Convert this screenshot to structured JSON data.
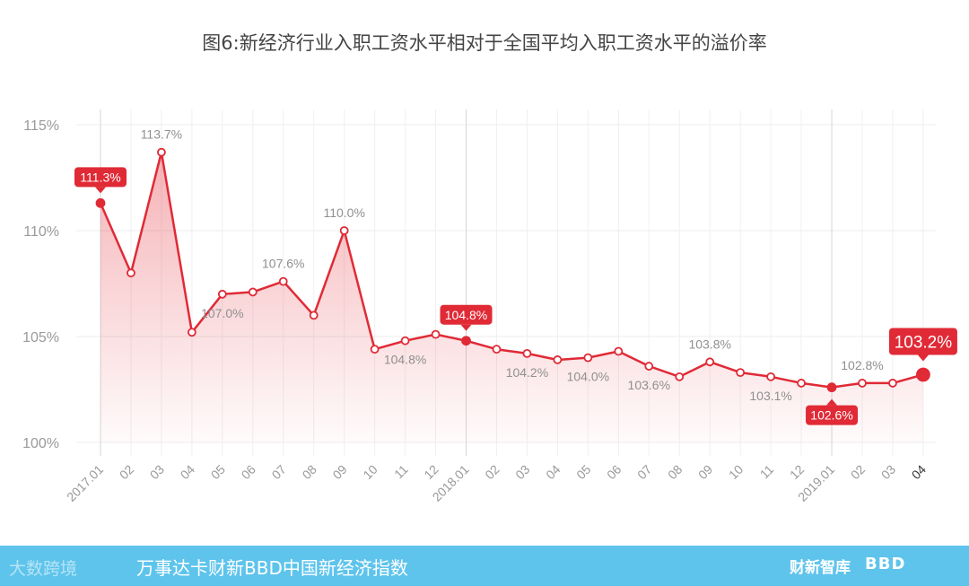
{
  "title": "图6:新经济行业入职工资水平相对于全国平均入职工资水平的溢价率",
  "chart_data": {
    "type": "area",
    "x": [
      "2017.01",
      "02",
      "03",
      "04",
      "05",
      "06",
      "07",
      "08",
      "09",
      "10",
      "11",
      "12",
      "2018.01",
      "02",
      "03",
      "04",
      "05",
      "06",
      "07",
      "08",
      "09",
      "10",
      "11",
      "12",
      "2019.01",
      "02",
      "03",
      "04"
    ],
    "values": [
      111.3,
      108.0,
      113.7,
      105.2,
      107.0,
      107.1,
      107.6,
      106.0,
      110.0,
      104.4,
      104.8,
      105.1,
      104.8,
      104.4,
      104.2,
      103.9,
      104.0,
      104.3,
      103.6,
      103.1,
      103.8,
      103.3,
      103.1,
      102.8,
      102.6,
      102.8,
      102.8,
      103.2
    ],
    "ylim": [
      100,
      115
    ],
    "yticks": [
      100,
      105,
      110,
      115
    ],
    "ytick_labels": [
      "100%",
      "105%",
      "110%",
      "115%"
    ],
    "data_labels": [
      {
        "index": 2,
        "text": "113.7%"
      },
      {
        "index": 4,
        "text": "107.0%"
      },
      {
        "index": 6,
        "text": "107.6%"
      },
      {
        "index": 8,
        "text": "110.0%"
      },
      {
        "index": 10,
        "text": "104.8%"
      },
      {
        "index": 14,
        "text": "104.2%"
      },
      {
        "index": 16,
        "text": "104.0%"
      },
      {
        "index": 18,
        "text": "103.6%"
      },
      {
        "index": 20,
        "text": "103.8%"
      },
      {
        "index": 22,
        "text": "103.1%"
      },
      {
        "index": 25,
        "text": "102.8%"
      }
    ],
    "callouts": [
      {
        "index": 0,
        "text": "111.3%"
      },
      {
        "index": 12,
        "text": "104.8%"
      },
      {
        "index": 24,
        "text": "102.6%"
      },
      {
        "index": 27,
        "text": "103.2%"
      }
    ],
    "line_color": "#e02a36",
    "grid": true
  },
  "footer": {
    "caption": "万事达卡财新BBD中国新经济指数",
    "watermark": "大数跨境",
    "logo_caixin": "财新智库",
    "logo_bbd": "BBD"
  }
}
